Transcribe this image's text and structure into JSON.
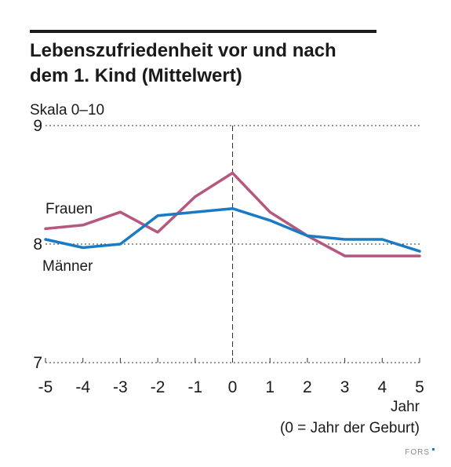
{
  "chart_data": {
    "type": "line",
    "title_lines": [
      "Lebenszufriedenheit vor und nach",
      "dem 1. Kind (Mittelwert)"
    ],
    "ylabel": "Skala 0–10",
    "xlabel_lines": [
      "Jahr",
      "(0 = Jahr der Geburt)"
    ],
    "x": [
      -5,
      -4,
      -3,
      -2,
      -1,
      0,
      1,
      2,
      3,
      4,
      5
    ],
    "x_tick_labels": [
      "-5",
      "-4",
      "-3",
      "-2",
      "-1",
      "0",
      "1",
      "2",
      "3",
      "4",
      "5"
    ],
    "ylim": [
      7,
      9
    ],
    "y_ticks": [
      7,
      8,
      9
    ],
    "y_tick_labels": [
      "7",
      "8",
      "9"
    ],
    "grid": "dotted horizontal at 8 and 9, dashed vertical at 0",
    "series": [
      {
        "name": "Frauen",
        "color": "#b5577e",
        "values": [
          8.13,
          8.16,
          8.27,
          8.1,
          8.4,
          8.6,
          8.27,
          8.07,
          7.9,
          7.9,
          7.9
        ]
      },
      {
        "name": "Männer",
        "color": "#1a7bc4",
        "values": [
          8.04,
          7.97,
          8.0,
          8.24,
          8.27,
          8.3,
          8.2,
          8.07,
          8.04,
          8.04,
          7.94
        ]
      }
    ]
  },
  "brand": {
    "text": "FORS",
    "accent_color": "#1a7bc4"
  }
}
